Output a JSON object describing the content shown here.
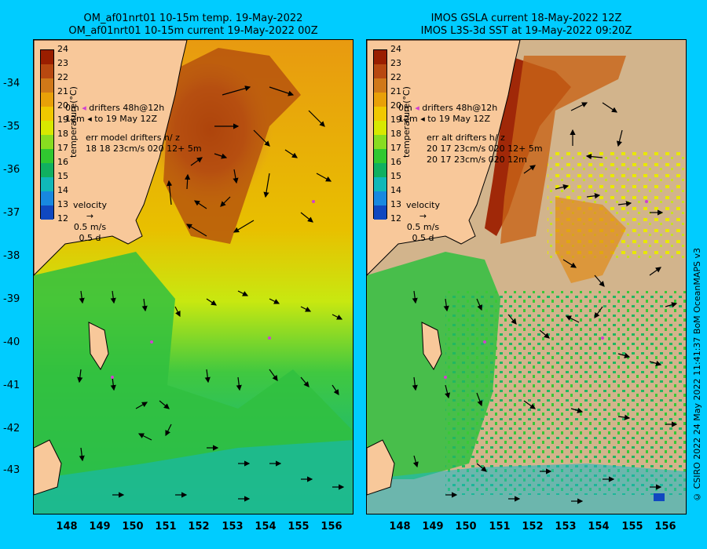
{
  "left_panel": {
    "title_line1": "OM_af01nrt01 10-15m temp. 19-May-2022",
    "title_line2": "OM_af01nrt01 10-15m current 19-May-2022 00Z",
    "legend": {
      "drifters_line1": "drifters 48h@12h",
      "drifters_line2": "to 19 May 12Z",
      "depth1": "0m",
      "depth2": "12m",
      "err_line1": "err model drifters h/ z",
      "err_line2": "18 18 23cm/s 020 12+ 5m",
      "velocity_label": "velocity",
      "velocity_scale": "0.5 m/s",
      "velocity_time": "0.5 d"
    }
  },
  "right_panel": {
    "title_line1": "IMOS GSLA current 18-May-2022 12Z",
    "title_line2": "IMOS L3S-3d SST at 19-May-2022 09:20Z",
    "legend": {
      "drifters_line1": "drifters 48h@12h",
      "drifters_line2": "to 19 May 12Z",
      "depth1": "0m",
      "depth2": "12m",
      "err_line1": "err alt drifters h/ z",
      "err_line2": "20 17 23cm/s 020 12+ 5m",
      "err_line3": "20 17 23cm/s 020 12m",
      "velocity_label": "velocity",
      "velocity_scale": "0.5 m/s",
      "velocity_time": "0.5 d"
    }
  },
  "colorbar": {
    "unit": "temperature(°C)",
    "ticks": [
      "24",
      "23",
      "22",
      "21",
      "20",
      "19",
      "18",
      "17",
      "16",
      "15",
      "14",
      "13",
      "12"
    ],
    "colors": [
      "#9a1e00",
      "#b84810",
      "#d07818",
      "#e8a008",
      "#f0c800",
      "#d8e800",
      "#88dc20",
      "#30c830",
      "#10b060",
      "#10b8b8",
      "#1888e0",
      "#1048c0",
      "#101090"
    ]
  },
  "axes": {
    "latitudes": [
      "-34",
      "-35",
      "-36",
      "-37",
      "-38",
      "-39",
      "-40",
      "-41",
      "-42",
      "-43"
    ],
    "longitudes": [
      "148",
      "149",
      "150",
      "151",
      "152",
      "153",
      "154",
      "155",
      "156"
    ]
  },
  "credit": "© CSIRO 2022   24 May 2022 11:41:37 BoM OceanMAPS v3",
  "colors": {
    "background": "#00ccff",
    "land": "#f8c89a",
    "missing_data": "#d2b48c"
  }
}
